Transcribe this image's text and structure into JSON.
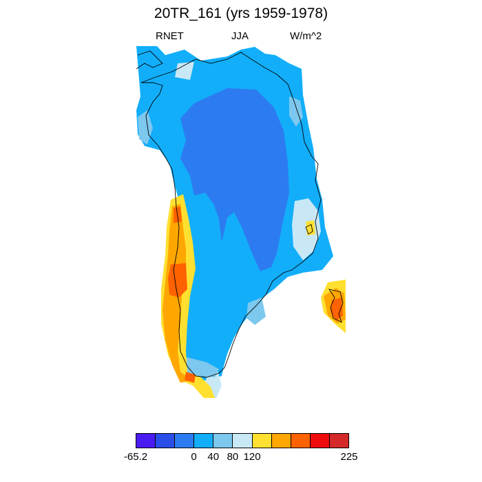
{
  "title": "20TR_161 (yrs 1959-1978)",
  "subtitle": {
    "left": "RNET",
    "center": "JJA",
    "right": "W/m^2"
  },
  "colorbar": {
    "colors": [
      "#4a1cf2",
      "#2a4ee8",
      "#2d7bf0",
      "#12aefa",
      "#7dc8ee",
      "#c8e8f6",
      "#ffe030",
      "#ffa700",
      "#ff6200",
      "#ee0c0c",
      "#d42a2a"
    ],
    "labels": [
      "-65.2",
      "0",
      "40",
      "80",
      "120",
      "225"
    ],
    "label_bins": [
      0,
      3,
      4,
      5,
      6,
      8
    ]
  }
}
